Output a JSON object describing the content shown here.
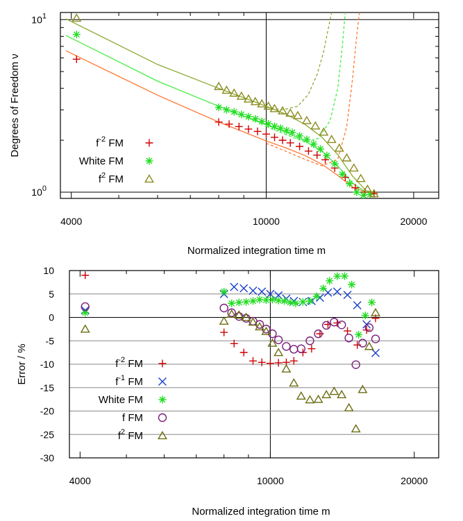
{
  "chart_data": [
    {
      "type": "scatter",
      "xlabel": "Normalized integration time m",
      "ylabel": "Degrees of Freedom ν",
      "xscale": "log",
      "yscale": "log",
      "xlim": [
        3800,
        22500
      ],
      "ylim": [
        0.92,
        11.0
      ],
      "xtick_labels": [
        "4000",
        "10000",
        "20000"
      ],
      "ytick_labels": [
        {
          "base": "10",
          "exp": "0"
        },
        {
          "base": "10",
          "exp": "1"
        }
      ],
      "grid": true,
      "legend_position": "center-left",
      "series": [
        {
          "name_base": "f",
          "name_exp": "-2",
          "name_suffix": " FM",
          "marker": "plus",
          "color": "#cc0000",
          "x": [
            4100,
            8000,
            8400,
            8800,
            9200,
            9600,
            10000,
            10400,
            10800,
            11200,
            11700,
            12200,
            12700,
            13200,
            13800,
            14500,
            15200,
            15900,
            16600
          ],
          "y": [
            5.9,
            2.55,
            2.48,
            2.4,
            2.32,
            2.25,
            2.17,
            2.08,
            2.0,
            1.93,
            1.84,
            1.73,
            1.64,
            1.54,
            1.38,
            1.22,
            1.06,
            1.0,
            0.98
          ]
        },
        {
          "name_base": "White FM",
          "name_exp": "",
          "name_suffix": "",
          "marker": "asterisk",
          "color": "#22dd22",
          "x": [
            4100,
            8000,
            8300,
            8600,
            8900,
            9200,
            9500,
            9800,
            10100,
            10400,
            10700,
            11000,
            11300,
            11700,
            12100,
            12500,
            12900,
            13300,
            13800,
            14300,
            14800,
            15300,
            15800,
            16300
          ],
          "y": [
            8.2,
            3.1,
            3.0,
            2.92,
            2.82,
            2.74,
            2.66,
            2.57,
            2.49,
            2.41,
            2.35,
            2.28,
            2.22,
            2.12,
            2.02,
            1.9,
            1.78,
            1.63,
            1.46,
            1.27,
            1.12,
            1.0,
            0.96,
            0.97
          ]
        },
        {
          "name_base": "f",
          "name_exp": "2",
          "name_suffix": " FM",
          "marker": "triangle",
          "color": "#8b8a1e",
          "x": [
            4100,
            8000,
            8300,
            8600,
            8900,
            9200,
            9500,
            9800,
            10100,
            10400,
            10800,
            11200,
            11600,
            12100,
            12600,
            13100,
            13600,
            14100,
            14600,
            15100,
            15600,
            16100,
            16600
          ],
          "y": [
            10.2,
            4.1,
            3.9,
            3.75,
            3.6,
            3.47,
            3.35,
            3.25,
            3.15,
            3.05,
            2.96,
            2.87,
            2.78,
            2.6,
            2.42,
            2.23,
            2.02,
            1.8,
            1.58,
            1.38,
            1.2,
            1.04,
            0.98
          ]
        }
      ],
      "reference_curves": [
        {
          "style": "solid",
          "color": "#88aa33",
          "x": [
            3900,
            6000,
            8000,
            10000,
            11000,
            12000,
            13000,
            14000,
            15000,
            16000,
            16800
          ],
          "y": [
            10.1,
            5.5,
            4.0,
            3.15,
            2.82,
            2.47,
            2.08,
            1.65,
            1.24,
            1.02,
            0.99
          ]
        },
        {
          "style": "solid",
          "color": "#44ee44",
          "x": [
            3900,
            6000,
            8000,
            10000,
            11000,
            12000,
            13000,
            14000,
            15000,
            16000,
            16800
          ],
          "y": [
            8.1,
            4.4,
            3.15,
            2.45,
            2.22,
            1.98,
            1.72,
            1.42,
            1.13,
            1.0,
            0.98
          ]
        },
        {
          "style": "solid",
          "color": "#ff7733",
          "x": [
            3900,
            6000,
            8000,
            10000,
            11000,
            12000,
            13000,
            14000,
            15000,
            16000,
            16800
          ],
          "y": [
            6.6,
            3.65,
            2.55,
            1.98,
            1.8,
            1.63,
            1.45,
            1.25,
            1.07,
            1.0,
            0.99
          ]
        },
        {
          "style": "dashed",
          "color": "#88aa33",
          "x": [
            10000,
            10800,
            11600,
            12200,
            12700,
            13100,
            13400,
            13600
          ],
          "y": [
            3.1,
            3.0,
            3.15,
            3.7,
            4.8,
            6.5,
            9.0,
            11.0
          ]
        },
        {
          "style": "dashed",
          "color": "#44ee44",
          "x": [
            10000,
            11000,
            12000,
            12800,
            13500,
            14000,
            14300,
            14500
          ],
          "y": [
            2.4,
            2.15,
            1.95,
            2.05,
            2.6,
            4.0,
            7.0,
            11.0
          ]
        },
        {
          "style": "dashed",
          "color": "#ff7733",
          "x": [
            10000,
            11000,
            12000,
            13000,
            14000,
            14600,
            15000,
            15300,
            15500
          ],
          "y": [
            1.92,
            1.72,
            1.55,
            1.42,
            1.55,
            2.4,
            4.5,
            8.0,
            11.0
          ]
        }
      ]
    },
    {
      "type": "scatter",
      "xlabel": "Normalized integration time m",
      "ylabel": "Error / %",
      "xscale": "log",
      "xlim": [
        3800,
        22500
      ],
      "ylim": [
        -30,
        10
      ],
      "xtick_labels": [
        "4000",
        "10000",
        "20000"
      ],
      "ytick_values": [
        10,
        5,
        0,
        -5,
        -10,
        -15,
        -20,
        -25,
        -30
      ],
      "grid": true,
      "legend_position": "bottom-left",
      "series": [
        {
          "name_base": "f",
          "name_exp": "-2",
          "name_suffix": " FM",
          "marker": "plus",
          "color": "#cc0000",
          "x": [
            4100,
            8000,
            8400,
            8800,
            9200,
            9600,
            10000,
            10400,
            10800,
            11200,
            11700,
            12200,
            12700,
            13200,
            13800,
            14500,
            15200,
            15900,
            16600
          ],
          "y": [
            9.0,
            -3.2,
            -5.6,
            -7.5,
            -9.3,
            -9.6,
            -9.8,
            -9.7,
            -9.6,
            -9.3,
            -7.5,
            -6.7,
            -3.5,
            -1.5,
            -1.2,
            -2.9,
            -5.9,
            -2.7,
            -0.2
          ]
        },
        {
          "name_base": "f",
          "name_exp": "-1",
          "name_suffix": " FM",
          "marker": "cross",
          "color": "#1a3fcc",
          "x": [
            4100,
            8000,
            8400,
            8800,
            9200,
            9600,
            10000,
            10400,
            10800,
            11200,
            11700,
            12200,
            12700,
            13200,
            13800,
            14500,
            15200,
            15900,
            16600
          ],
          "y": [
            1.5,
            5.0,
            6.5,
            6.2,
            5.7,
            5.5,
            5.0,
            4.7,
            4.0,
            3.5,
            3.3,
            3.5,
            4.2,
            5.3,
            5.5,
            4.8,
            2.6,
            -1.5,
            -7.6
          ]
        },
        {
          "name_base": "White FM",
          "name_exp": "",
          "name_suffix": "",
          "marker": "asterisk",
          "color": "#22dd22",
          "x": [
            4100,
            8000,
            8300,
            8600,
            8900,
            9200,
            9500,
            9800,
            10100,
            10400,
            10700,
            11000,
            11300,
            11700,
            12100,
            12500,
            12900,
            13300,
            13800,
            14300,
            14800,
            15300,
            15800,
            16300
          ],
          "y": [
            1.0,
            5.5,
            3.0,
            3.2,
            3.3,
            3.5,
            3.8,
            3.7,
            3.8,
            3.6,
            3.5,
            3.2,
            3.0,
            3.3,
            3.5,
            4.5,
            6.2,
            7.8,
            8.8,
            8.8,
            7.0,
            -3.7,
            0.4,
            3.2
          ]
        },
        {
          "name_base": "f FM",
          "name_exp": "",
          "name_suffix": "",
          "marker": "circle",
          "color": "#7a1f7a",
          "x": [
            4100,
            8000,
            8300,
            8600,
            8900,
            9200,
            9500,
            9800,
            10100,
            10400,
            10800,
            11200,
            11600,
            12100,
            12600,
            13100,
            13600,
            14100,
            14600,
            15100,
            15600,
            16100,
            16600
          ],
          "y": [
            2.3,
            2.0,
            1.0,
            0.2,
            -0.2,
            -0.8,
            -1.5,
            -2.5,
            -3.5,
            -4.8,
            -6.2,
            -6.8,
            -6.7,
            -5.0,
            -3.5,
            -1.7,
            -1.0,
            -1.6,
            -4.4,
            -10.1,
            -5.5,
            -2.2,
            -4.6
          ]
        },
        {
          "name_base": "f",
          "name_exp": "2",
          "name_suffix": " FM",
          "marker": "triangle",
          "color": "#6b6b10",
          "x": [
            4100,
            8000,
            8300,
            8600,
            8900,
            9200,
            9500,
            9800,
            10100,
            10400,
            10800,
            11200,
            11600,
            12100,
            12600,
            13100,
            13600,
            14100,
            14600,
            15100,
            15600,
            16100,
            16600
          ],
          "y": [
            -2.5,
            -0.8,
            0.7,
            0.5,
            0.0,
            -1.0,
            -2.0,
            -3.0,
            -5.5,
            -7.5,
            -11.0,
            -14.0,
            -16.8,
            -17.6,
            -17.5,
            -16.5,
            -15.8,
            -16.5,
            -19.3,
            -23.8,
            -15.4,
            -6.2,
            1.0
          ]
        }
      ]
    }
  ]
}
